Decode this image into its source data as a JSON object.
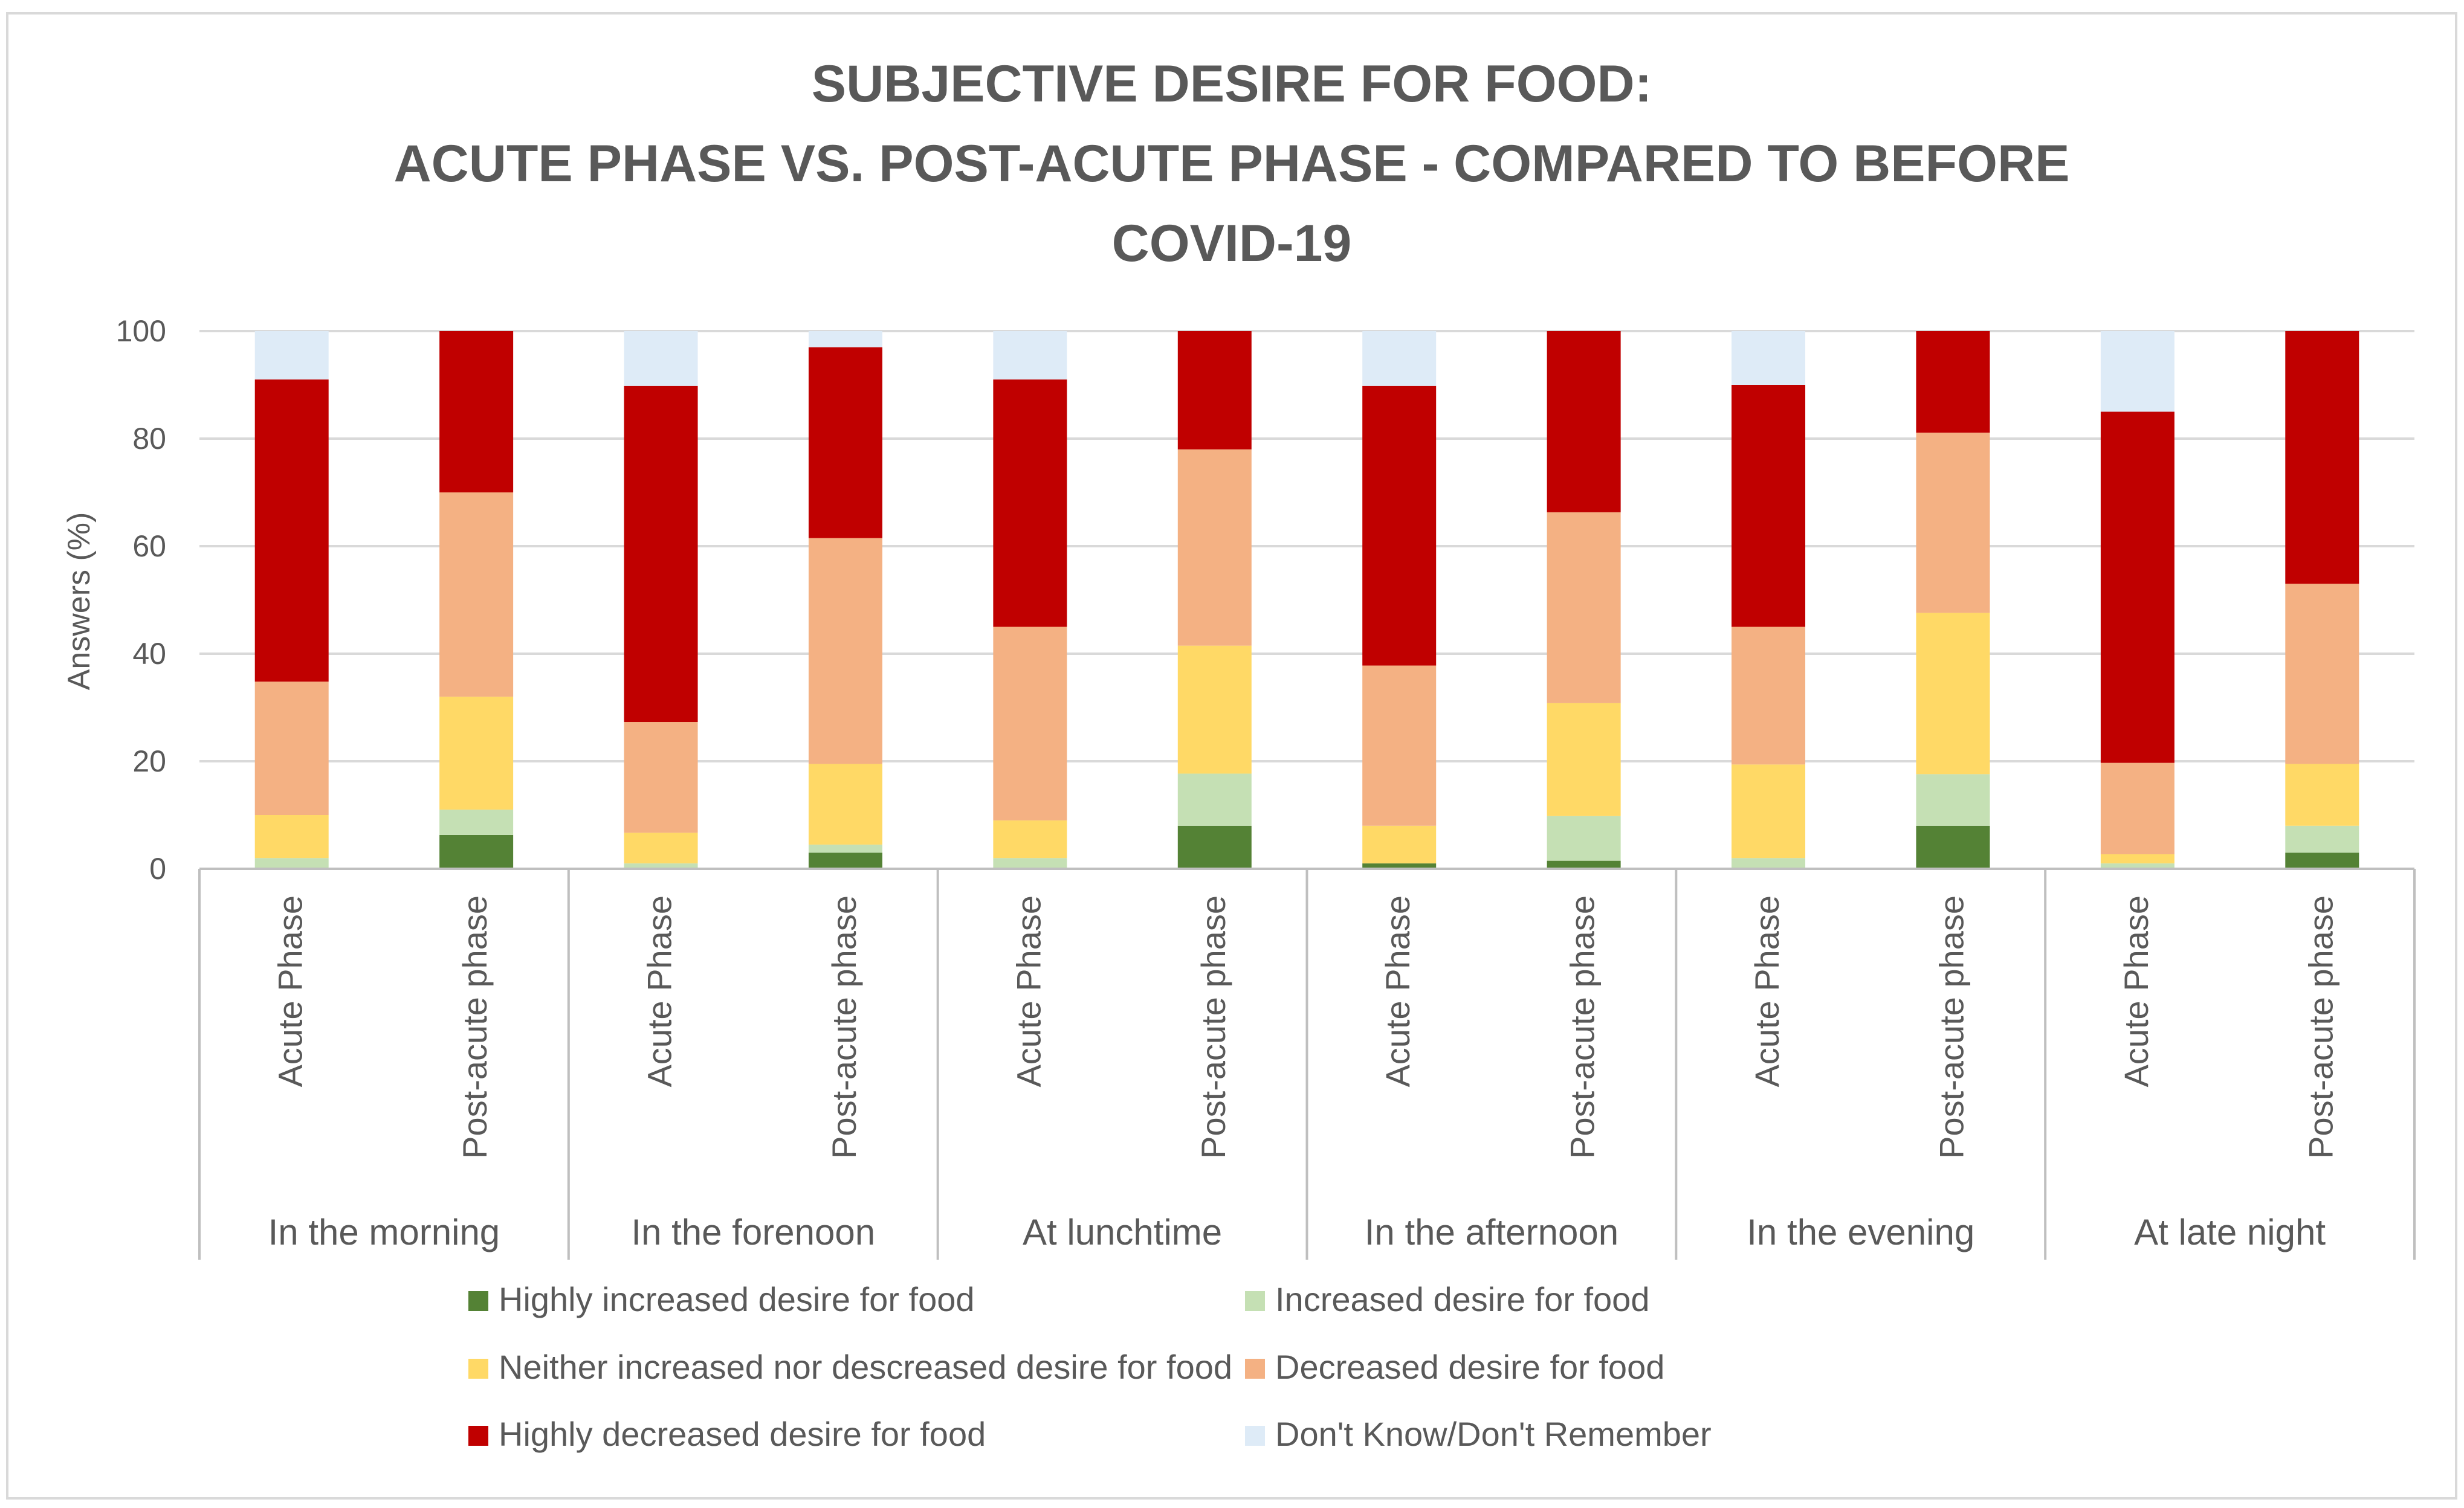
{
  "chart_data": {
    "type": "bar",
    "stacked": true,
    "title_lines": [
      "SUBJECTIVE DESIRE FOR FOOD:",
      "ACUTE PHASE VS. POST-ACUTE PHASE - COMPARED TO BEFORE",
      "COVID-19"
    ],
    "ylabel": "Answers (%)",
    "ylim": [
      0,
      100
    ],
    "yticks": [
      0,
      20,
      40,
      60,
      80,
      100
    ],
    "grid": true,
    "groups": [
      "In the morning",
      "In the forenoon",
      "At lunchtime",
      "In the afternoon",
      "In the evening",
      "At late night"
    ],
    "phases": [
      "Acute Phase",
      "Post-acute phase"
    ],
    "categories": [
      "In the morning | Acute Phase",
      "In the morning | Post-acute phase",
      "In the forenoon | Acute Phase",
      "In the forenoon | Post-acute phase",
      "At lunchtime | Acute Phase",
      "At lunchtime | Post-acute phase",
      "In the afternoon | Acute Phase",
      "In the afternoon | Post-acute phase",
      "In the evening | Acute Phase",
      "In the evening | Post-acute phase",
      "At late night | Acute Phase",
      "At late night | Post-acute phase"
    ],
    "series": [
      {
        "name": "Highly increased desire for food",
        "color": "#548235",
        "values": [
          0,
          6.3,
          0,
          3.0,
          0,
          8.0,
          1.0,
          1.5,
          0,
          8.0,
          0,
          3.0
        ]
      },
      {
        "name": "Increased desire for food",
        "color": "#c5e0b4",
        "values": [
          2.0,
          4.7,
          1.0,
          1.5,
          2.0,
          9.7,
          0,
          8.3,
          2.0,
          9.6,
          1.0,
          5.0
        ]
      },
      {
        "name": "Neither increased nor descreased desire for food",
        "color": "#ffd966",
        "values": [
          8.0,
          21.0,
          5.7,
          15.0,
          7.0,
          23.8,
          7.0,
          21.0,
          17.4,
          30.0,
          1.7,
          11.5
        ]
      },
      {
        "name": "Decreased desire for food",
        "color": "#f4b183",
        "values": [
          24.8,
          38.0,
          20.6,
          42.0,
          36.0,
          36.5,
          29.8,
          35.5,
          25.6,
          33.5,
          17.0,
          33.5
        ]
      },
      {
        "name": "Highly decreased desire for food",
        "color": "#c00000",
        "values": [
          56.2,
          30.0,
          62.5,
          35.5,
          46.0,
          22.0,
          52.0,
          33.7,
          45.0,
          18.9,
          65.3,
          47.0
        ]
      },
      {
        "name": "Don't Know/Don't Remember",
        "color": "#deebf7",
        "values": [
          9.0,
          0,
          10.2,
          3.0,
          9.0,
          0,
          10.2,
          0,
          10.0,
          0,
          15.0,
          0
        ]
      }
    ],
    "legend_position": "bottom"
  }
}
